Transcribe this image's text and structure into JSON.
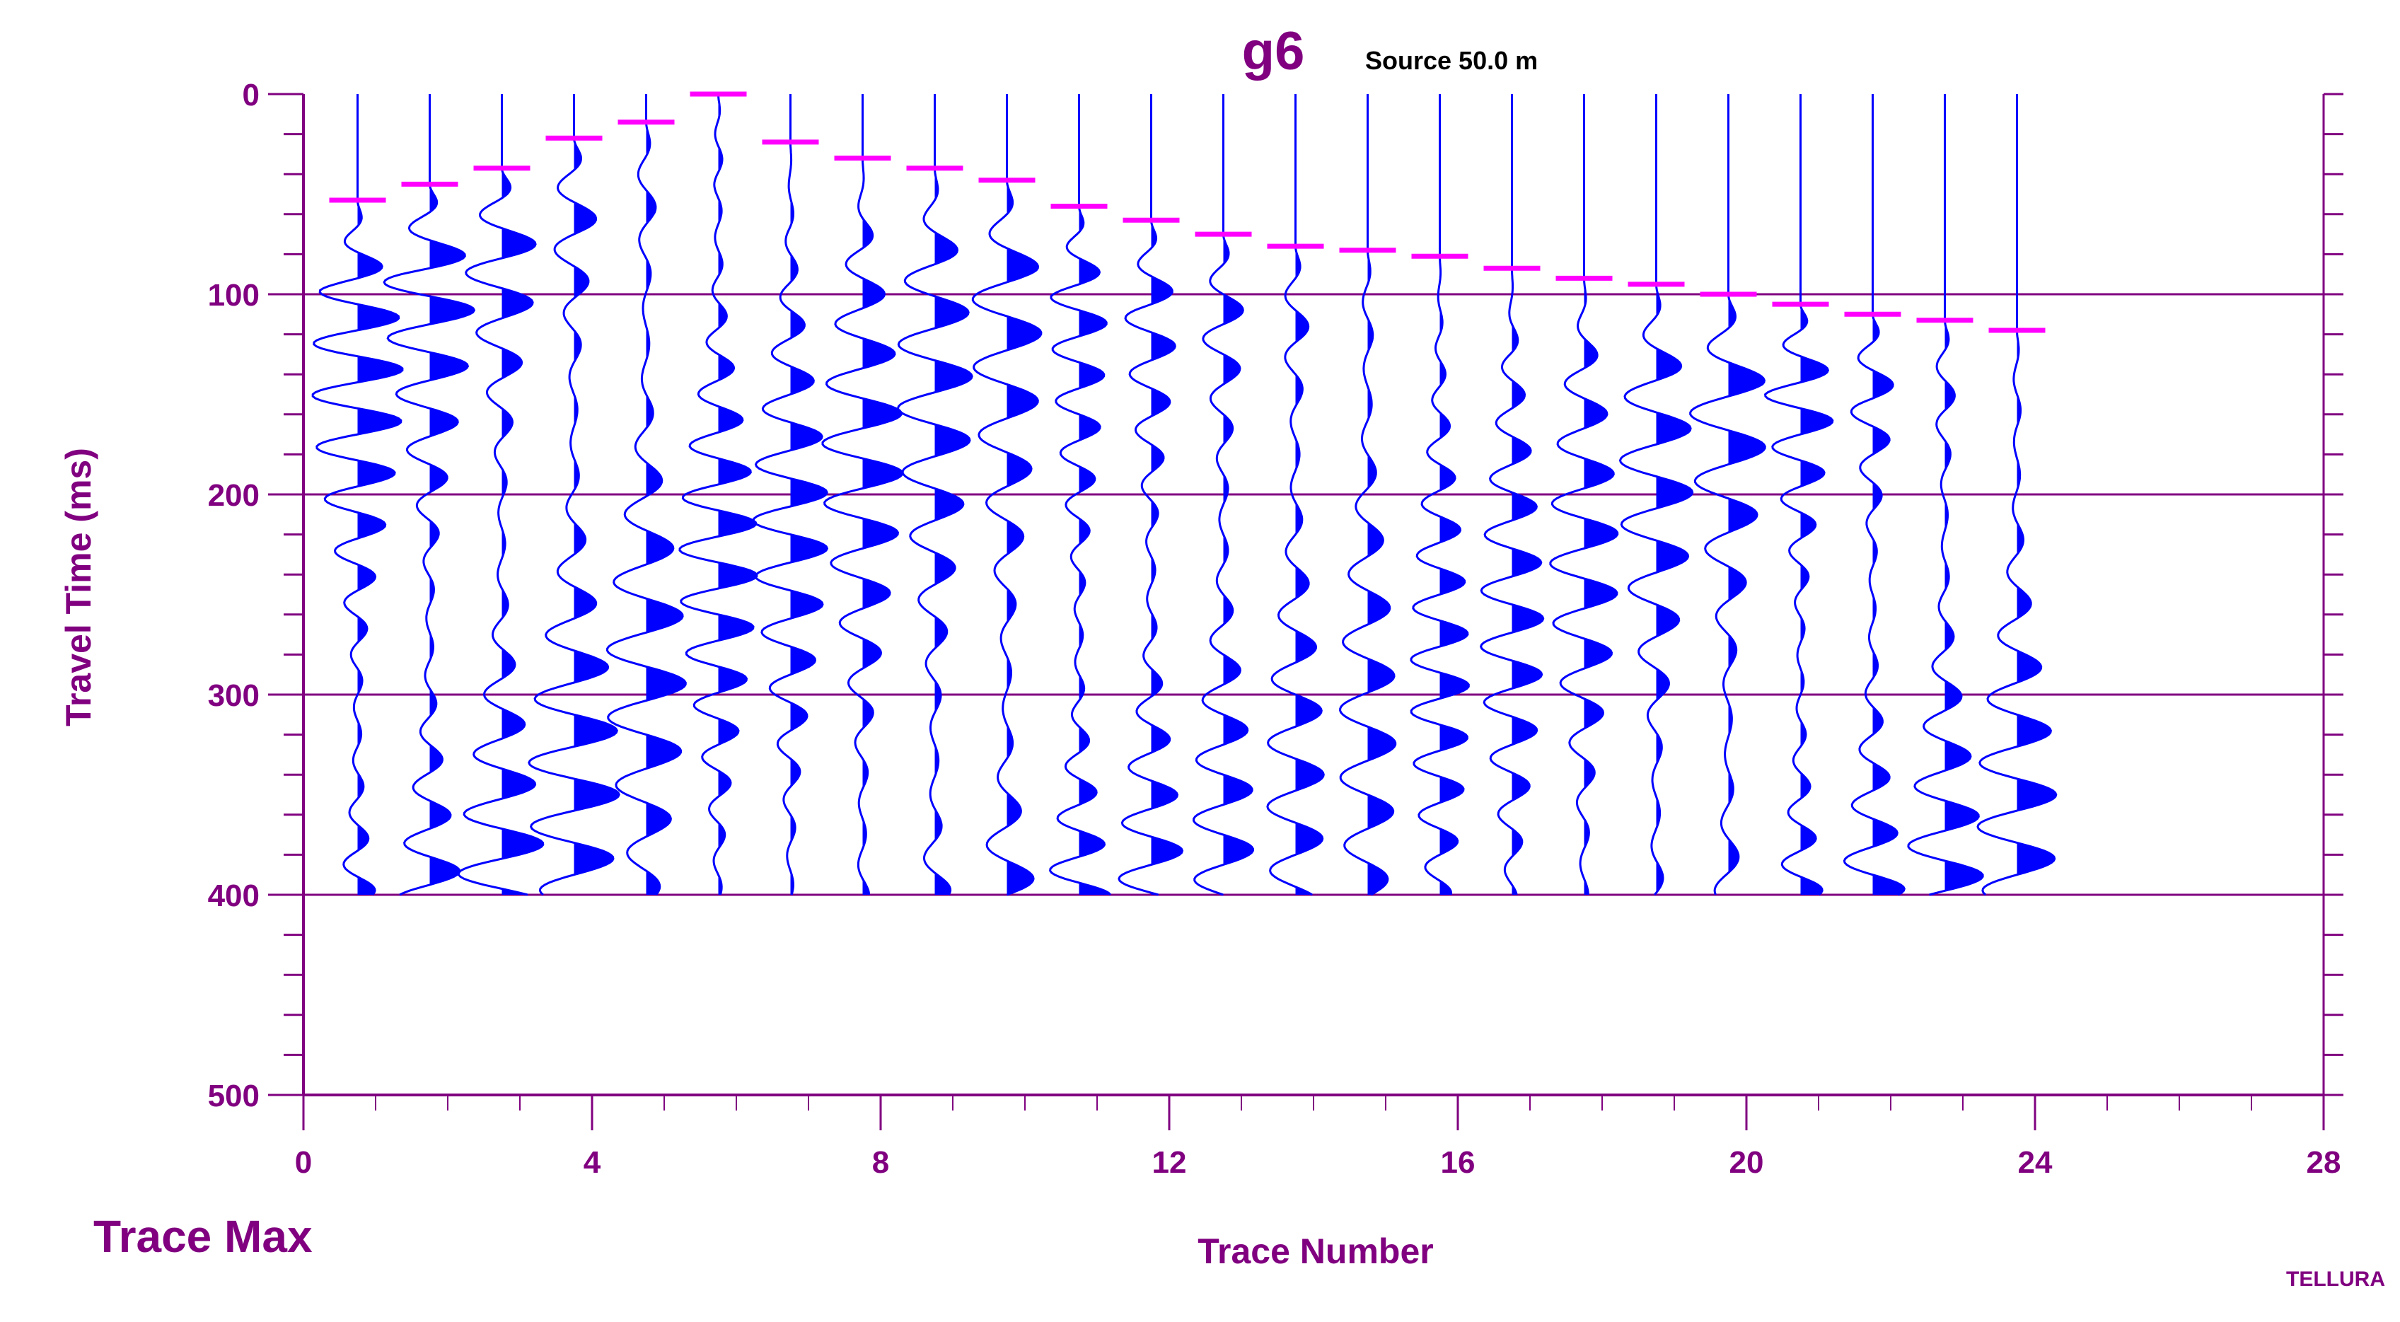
{
  "chart_data": {
    "type": "line",
    "title": "g6",
    "subtitle": "Source 50.0 m",
    "xlabel": "Trace Number",
    "ylabel": "Travel Time (ms)",
    "xlim": [
      0,
      28
    ],
    "ylim": [
      0,
      500
    ],
    "y_inverted": true,
    "x_ticks": [
      0,
      4,
      8,
      12,
      16,
      20,
      24,
      28
    ],
    "y_ticks": [
      0,
      100,
      200,
      300,
      400,
      500
    ],
    "y_gridlines": [
      100,
      200,
      300,
      400
    ],
    "scaling_label": "Trace Max",
    "footer": "TELLURA",
    "trace_count": 24,
    "trace_positions": [
      0.75,
      1.75,
      2.75,
      3.75,
      4.75,
      5.75,
      6.75,
      7.75,
      8.75,
      9.75,
      10.75,
      11.75,
      12.75,
      13.75,
      14.75,
      15.75,
      16.75,
      17.75,
      18.75,
      19.75,
      20.75,
      21.75,
      22.75,
      23.75
    ],
    "record_end_ms": 400,
    "first_breaks_ms": [
      53,
      45,
      37,
      22,
      14,
      0,
      24,
      32,
      37,
      43,
      56,
      63,
      70,
      76,
      78,
      81,
      87,
      92,
      95,
      100,
      105,
      110,
      113,
      118
    ],
    "trace_color": "#0000ff",
    "pick_color": "#ff00ff",
    "axis_color": "#800080"
  }
}
